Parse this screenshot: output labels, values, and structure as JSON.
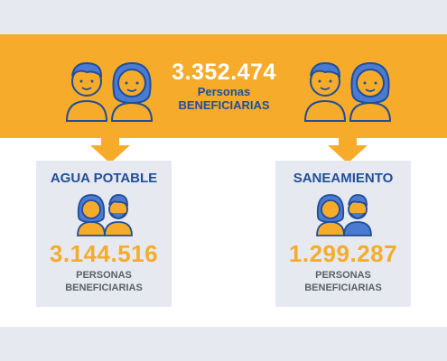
{
  "header": {
    "total_value": "3.352.474",
    "total_label_line1": "Personas",
    "total_label_line2": "BENEFICIARIAS"
  },
  "cards": [
    {
      "title": "AGUA POTABLE",
      "value": "3.144.516",
      "label_line1": "PERSONAS",
      "label_line2": "BENEFICIARIAS"
    },
    {
      "title": "SANEAMIENTO",
      "value": "1.299.287",
      "label_line1": "PERSONAS",
      "label_line2": "BENEFICIARIAS"
    }
  ],
  "colors": {
    "band": "#f6ac2a",
    "card_bg": "#e6e9ef",
    "navy": "#1f4e9a",
    "figure_blue": "#4b7bd0",
    "accent": "#f6ac2a"
  },
  "icons": [
    "couple-icon",
    "arrow-down-icon"
  ]
}
